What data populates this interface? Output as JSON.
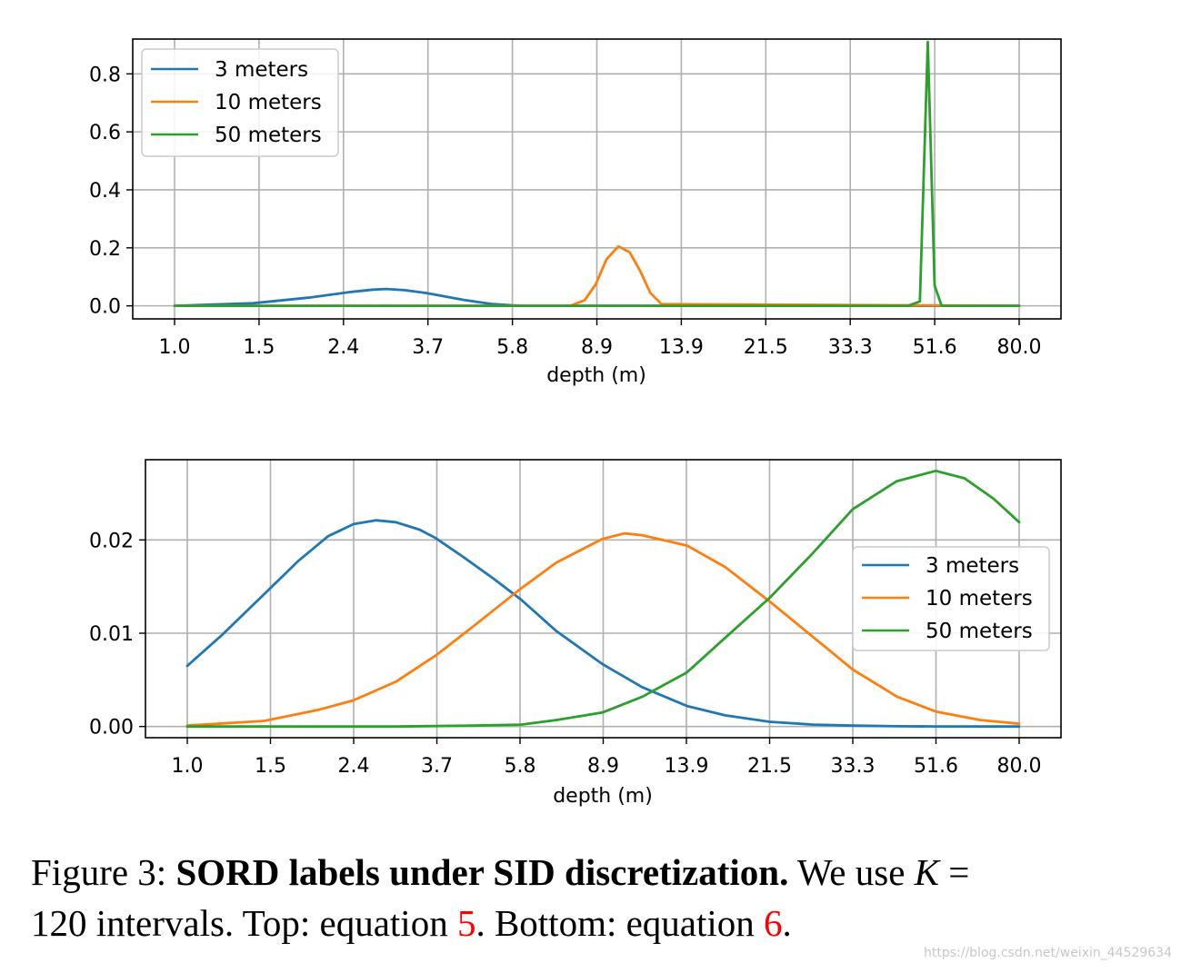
{
  "figure": {
    "caption": {
      "prefix": "Figure 3:",
      "bold": "SORD labels under SID discretization.",
      "text1": "We use",
      "var": "K",
      "eq": "=",
      "text2": "120 intervals. Top: equation",
      "ref1": "5",
      "text3": ". Bottom: equation",
      "ref2": "6",
      "end": "."
    },
    "watermark": "https://blog.csdn.net/weixin_44529634"
  },
  "chart_data": [
    {
      "type": "line",
      "id": "top",
      "x_ticks": [
        "1.0",
        "1.5",
        "2.4",
        "3.7",
        "5.8",
        "8.9",
        "13.9",
        "21.5",
        "33.3",
        "51.6",
        "80.0"
      ],
      "xlabel": "depth (m)",
      "x_scale": "log",
      "xlim": [
        1.0,
        80.0
      ],
      "ylim": [
        -0.045,
        0.92
      ],
      "y_ticks": [
        0.0,
        0.2,
        0.4,
        0.6,
        0.8
      ],
      "y_tick_labels": [
        "0.0",
        "0.2",
        "0.4",
        "0.6",
        "0.8"
      ],
      "grid": true,
      "legend_position": "upper-left",
      "series": [
        {
          "name": "3 meters",
          "color": "#1f77b4",
          "x": [
            1.0,
            1.5,
            2.0,
            2.5,
            2.8,
            3.0,
            3.3,
            3.7,
            4.5,
            5.2,
            6.0,
            80.0
          ],
          "y": [
            0.0,
            0.009,
            0.028,
            0.048,
            0.056,
            0.058,
            0.054,
            0.044,
            0.02,
            0.006,
            0.0,
            0.0
          ]
        },
        {
          "name": "10 meters",
          "color": "#ff7f0e",
          "x": [
            1.0,
            7.8,
            8.4,
            8.9,
            9.4,
            10.0,
            10.6,
            11.2,
            11.8,
            12.5,
            80.0
          ],
          "y": [
            0.0,
            0.0,
            0.02,
            0.075,
            0.16,
            0.205,
            0.185,
            0.12,
            0.045,
            0.006,
            0.0
          ]
        },
        {
          "name": "50 meters",
          "color": "#2ca02c",
          "x": [
            1.0,
            45.0,
            47.8,
            49.8,
            51.6,
            53.5,
            56.0,
            80.0
          ],
          "y": [
            0.0,
            0.0,
            0.015,
            0.91,
            0.07,
            0.0,
            0.0,
            0.0
          ]
        }
      ]
    },
    {
      "type": "line",
      "id": "bottom",
      "x_ticks": [
        "1.0",
        "1.5",
        "2.4",
        "3.7",
        "5.8",
        "8.9",
        "13.9",
        "21.5",
        "33.3",
        "51.6",
        "80.0"
      ],
      "xlabel": "depth (m)",
      "x_scale": "log",
      "xlim": [
        1.0,
        80.0
      ],
      "ylim": [
        -0.0012,
        0.0286
      ],
      "y_ticks": [
        0.0,
        0.01,
        0.02
      ],
      "y_tick_labels": [
        "0.00",
        "0.01",
        "0.02"
      ],
      "grid": true,
      "legend_position": "center-right",
      "series": [
        {
          "name": "3 meters",
          "color": "#1f77b4",
          "x": [
            1.0,
            1.2,
            1.5,
            1.8,
            2.1,
            2.4,
            2.7,
            3.0,
            3.4,
            3.7,
            4.3,
            5.0,
            5.8,
            7.0,
            8.9,
            11.0,
            13.9,
            17.0,
            21.5,
            27.0,
            33.3,
            42.0,
            51.6,
            80.0
          ],
          "y": [
            0.0065,
            0.0098,
            0.0142,
            0.0178,
            0.0204,
            0.0217,
            0.0221,
            0.0219,
            0.0211,
            0.0202,
            0.0181,
            0.0159,
            0.0136,
            0.0102,
            0.0067,
            0.0042,
            0.0022,
            0.0012,
            0.0005,
            0.0002,
            0.0001,
            3e-05,
            1e-05,
            0.0
          ]
        },
        {
          "name": "10 meters",
          "color": "#ff7f0e",
          "x": [
            1.0,
            1.5,
            2.0,
            2.4,
            3.0,
            3.7,
            4.5,
            5.8,
            7.0,
            8.9,
            10.0,
            11.0,
            13.9,
            17.0,
            21.5,
            27.0,
            33.3,
            42.0,
            51.6,
            65.0,
            80.0
          ],
          "y": [
            0.0001,
            0.0006,
            0.0018,
            0.0028,
            0.0048,
            0.0076,
            0.0107,
            0.0148,
            0.0176,
            0.0201,
            0.0207,
            0.0205,
            0.0194,
            0.0171,
            0.0134,
            0.0096,
            0.0061,
            0.0032,
            0.0016,
            0.0007,
            0.0003
          ]
        },
        {
          "name": "50 meters",
          "color": "#2ca02c",
          "x": [
            1.0,
            3.0,
            4.5,
            5.8,
            7.0,
            8.9,
            11.0,
            13.9,
            17.0,
            21.5,
            27.0,
            33.3,
            42.0,
            51.6,
            60.0,
            70.0,
            80.0
          ],
          "y": [
            0.0,
            0.0,
            0.0001,
            0.0002,
            0.0007,
            0.0015,
            0.0032,
            0.0058,
            0.0095,
            0.0138,
            0.0186,
            0.0233,
            0.0263,
            0.0274,
            0.0266,
            0.0244,
            0.0219
          ]
        }
      ]
    }
  ]
}
